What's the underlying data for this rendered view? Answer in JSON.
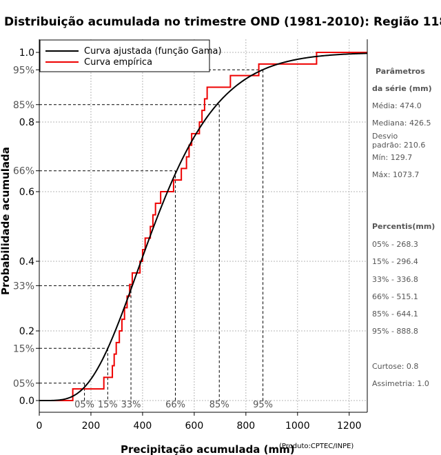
{
  "chart_data": {
    "type": "line",
    "title": "Distribuição acumulada no trimestre OND (1981-2010): Região 118",
    "xlabel": "Precipitação acumulada (mm)",
    "ylabel": "Probabilidade acumulada",
    "credit": "(Produto:CPTEC/INPE)",
    "xlim": [
      0,
      1270
    ],
    "ylim": [
      0,
      1
    ],
    "x_ticks": [
      0,
      200,
      400,
      600,
      800,
      1000,
      1200
    ],
    "x_tick_labels": [
      "0",
      "200",
      "400",
      "600",
      "800",
      "1000",
      "1200"
    ],
    "y_ticks": [
      {
        "value": 0.0,
        "label": "0.0",
        "grey": false
      },
      {
        "value": 0.05,
        "label": "05%",
        "grey": true
      },
      {
        "value": 0.15,
        "label": "15%",
        "grey": true
      },
      {
        "value": 0.2,
        "label": "0.2",
        "grey": false
      },
      {
        "value": 0.33,
        "label": "33%",
        "grey": true
      },
      {
        "value": 0.4,
        "label": "0.4",
        "grey": false
      },
      {
        "value": 0.6,
        "label": "0.6",
        "grey": false
      },
      {
        "value": 0.66,
        "label": "66%",
        "grey": true
      },
      {
        "value": 0.8,
        "label": "0.8",
        "grey": false
      },
      {
        "value": 0.85,
        "label": "85%",
        "grey": true
      },
      {
        "value": 0.95,
        "label": "95%",
        "grey": true
      },
      {
        "value": 1.0,
        "label": "1.0",
        "grey": false
      }
    ],
    "legend": {
      "position": "top-left",
      "entries": [
        {
          "label": "Curva ajustada (função Gama)",
          "color": "#000000"
        },
        {
          "label": "Curva empírica",
          "color": "#ee0000"
        }
      ]
    },
    "gamma_fit": {
      "shape": 5.07,
      "scale": 93.5,
      "color": "#000000"
    },
    "empirical": {
      "color": "#ee0000",
      "x": [
        0,
        129.7,
        250,
        283,
        290,
        298,
        310,
        320,
        330,
        340,
        350,
        360,
        390,
        400,
        410,
        430,
        440,
        450,
        470,
        520,
        550,
        570,
        580,
        590,
        620,
        630,
        640,
        650,
        660,
        680,
        740,
        850,
        940,
        1073.7,
        1270
      ],
      "y": [
        0,
        0.0333,
        0.0667,
        0.1,
        0.1333,
        0.1667,
        0.2,
        0.2333,
        0.2667,
        0.3,
        0.3333,
        0.3667,
        0.4,
        0.4333,
        0.4667,
        0.5,
        0.5333,
        0.5667,
        0.6,
        0.6333,
        0.6667,
        0.7,
        0.7333,
        0.7667,
        0.8,
        0.8333,
        0.8667,
        0.9,
        0.9,
        0.9,
        0.9333,
        0.9667,
        0.9667,
        1.0,
        1.0
      ]
    },
    "percentile_markers": [
      {
        "label": "05%",
        "p": 0.05,
        "x": 175
      },
      {
        "label": "15%",
        "p": 0.15,
        "x": 265
      },
      {
        "label": "33%",
        "p": 0.33,
        "x": 355
      },
      {
        "label": "66%",
        "p": 0.66,
        "x": 527
      },
      {
        "label": "85%",
        "p": 0.85,
        "x": 697
      },
      {
        "label": "95%",
        "p": 0.95,
        "x": 866
      }
    ],
    "side_panel": {
      "params_title_1": "Parâmetros",
      "params_title_2": "da série (mm)",
      "media": "Média: 474.0",
      "mediana": "Mediana: 426.5",
      "desvio_1": "Desvio",
      "desvio_2": "padrão: 210.6",
      "min": "Mín: 129.7",
      "max": "Máx: 1073.7",
      "percentis_title": "Percentis(mm)",
      "p05": "05% - 268.3",
      "p15": "15% - 296.4",
      "p33": "33% - 336.8",
      "p66": "66% - 515.1",
      "p85": "85% - 644.1",
      "p95": "95% - 888.8",
      "curtose": "Curtose: 0.8",
      "assimetria": "Assimetria: 1.0"
    }
  }
}
